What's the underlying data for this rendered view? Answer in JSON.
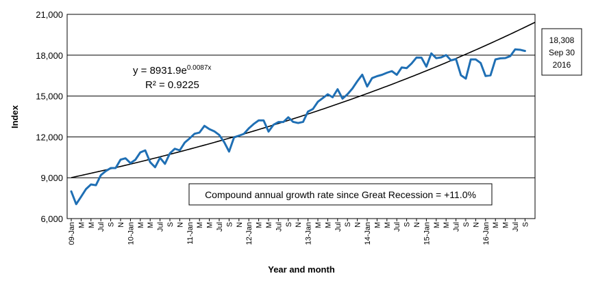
{
  "chart_data": {
    "type": "line",
    "xlabel": "Year and month",
    "ylabel": "Index",
    "ylim": [
      6000,
      21000
    ],
    "yticks": [
      "6,000",
      "9,000",
      "12,000",
      "15,000",
      "18,000",
      "21,000"
    ],
    "ytick_values": [
      6000,
      9000,
      12000,
      15000,
      18000,
      21000
    ],
    "grid": "horizontal",
    "x_tick_labels": [
      "09-Jan",
      "M",
      "M",
      "Jul",
      "S",
      "N",
      "10-Jan",
      "M",
      "M",
      "Jul",
      "S",
      "N",
      "11-Jan",
      "M",
      "M",
      "Jul",
      "S",
      "N",
      "12-Jan",
      "M",
      "M",
      "Jul",
      "S",
      "N",
      "13-Jan",
      "M",
      "M",
      "Jul",
      "S",
      "N",
      "14-Jan",
      "M",
      "M",
      "Jul",
      "S",
      "N",
      "15-Jan",
      "M",
      "M",
      "Jul",
      "S",
      "N",
      "16-Jan",
      "M",
      "M",
      "Jul",
      "S"
    ],
    "series": [
      {
        "color": "#1f6fb4",
        "values": [
          8000,
          7060,
          7610,
          8170,
          8510,
          8450,
          9190,
          9490,
          9710,
          9710,
          10330,
          10430,
          10070,
          10320,
          10860,
          11010,
          10140,
          9770,
          10470,
          10020,
          10790,
          11130,
          11010,
          11580,
          11890,
          12230,
          12320,
          12810,
          12570,
          12410,
          12140,
          11620,
          10920,
          11960,
          12090,
          12220,
          12630,
          12950,
          13210,
          13210,
          12390,
          12890,
          13090,
          13090,
          13440,
          13100,
          13020,
          13100,
          13860,
          14050,
          14580,
          14850,
          15130,
          14910,
          15500,
          14810,
          15130,
          15550,
          16090,
          16570,
          15700,
          16320,
          16460,
          16560,
          16710,
          16830,
          16560,
          17100,
          17050,
          17390,
          17830,
          17820,
          17160,
          18130,
          17780,
          17840,
          18010,
          17620,
          17720,
          16530,
          16280,
          17690,
          17690,
          17430,
          16470,
          16520,
          17690,
          17770,
          17790,
          17930,
          18430,
          18400,
          18310
        ]
      },
      {
        "color": "#000000",
        "trend": "exponential",
        "coef": 8931.9,
        "rate": 0.0087,
        "x_start": 1,
        "x_end": 95
      }
    ],
    "annotations": {
      "equation_main": "y = 8931.9e",
      "equation_exp": "0.0087x",
      "r_squared": "R² = 0.9225",
      "cagr": "Compound annual growth rate since Great Recession = +11.0%",
      "last_value": "18,308",
      "last_date": "Sep 30",
      "last_year": "2016"
    }
  }
}
